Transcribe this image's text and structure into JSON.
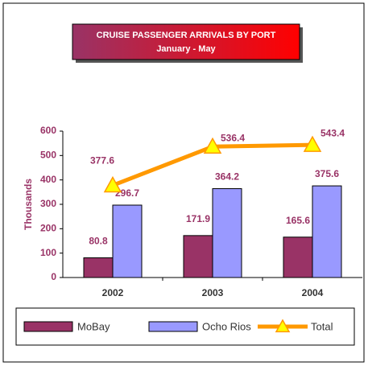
{
  "chart_data": {
    "type": "bar",
    "title": "CRUISE PASSENGER ARRIVALS BY PORT",
    "subtitle": "January - May",
    "y_label": "Thousands",
    "categories": [
      "2002",
      "2003",
      "2004"
    ],
    "series": [
      {
        "name": "MoBay",
        "color": "#993366",
        "values": [
          80.8,
          171.9,
          165.6
        ]
      },
      {
        "name": "Ocho Rios",
        "color": "#9999ff",
        "values": [
          296.7,
          364.2,
          375.6
        ]
      },
      {
        "name": "Total",
        "type": "line",
        "color": "#ff9900",
        "marker_color": "#ffff00",
        "values": [
          377.6,
          536.4,
          543.4
        ]
      }
    ],
    "ylim": [
      0,
      600
    ],
    "yticks": [
      0,
      100,
      200,
      300,
      400,
      500,
      600
    ],
    "legend": "bottom"
  }
}
